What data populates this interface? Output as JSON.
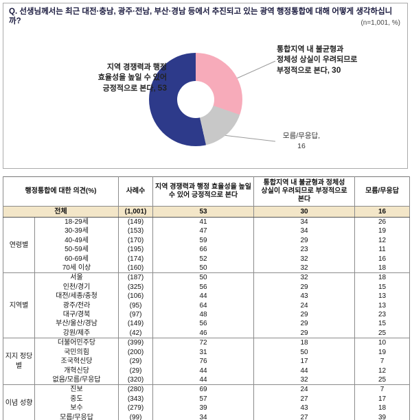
{
  "header": {
    "question": "Q. 선생님께서는 최근 대전·충남, 광주·전남, 부산·경남 등에서 추진되고 있는 광역 행정통합에 대해 어떻게 생각하십니까?",
    "sample_note": "(n=1,001, %)"
  },
  "chart_data": {
    "type": "pie",
    "donut": true,
    "labels": [
      "지역 경쟁력과 행정 효율성을 높일 수 있어 긍정적으로 본다",
      "통합지역 내 불균형과 정체성 상실이 우려되므로 부정적으로 본다",
      "모름/무응답"
    ],
    "values": [
      53,
      30,
      16
    ],
    "colors": [
      "#2d3a8a",
      "#f7abba",
      "#c8c8c8"
    ],
    "annotations": {
      "positive": {
        "lines": [
          "지역 경쟁력과 행정",
          "효율성을 높일 수 있어",
          "긍정적으로 본다,"
        ],
        "value": "53"
      },
      "negative": {
        "lines": [
          "통합지역 내 불균형과",
          "정체성 상실이 우려되므로",
          "부정적으로 본다,"
        ],
        "value": "30"
      },
      "dk": {
        "lines": [
          "모름/무응답,"
        ],
        "value": "16"
      }
    }
  },
  "table": {
    "col_headers": [
      "행정통합에 대한 의견(%)",
      "사례수",
      "지역 경쟁력과 행정 효율성을 높일 수 있어 긍정적으로 본다",
      "통합지역 내 불균형과 정체성 상실이 우려되므로 부정적으로 본다",
      "모름/무응답"
    ],
    "total_row": {
      "label": "전체",
      "n": "(1,001)",
      "values": [
        53,
        30,
        16
      ]
    },
    "groups": [
      {
        "group": "연령별",
        "rows": [
          {
            "label": "18-29세",
            "n": "(149)",
            "values": [
              41,
              34,
              26
            ]
          },
          {
            "label": "30-39세",
            "n": "(153)",
            "values": [
              47,
              34,
              19
            ]
          },
          {
            "label": "40-49세",
            "n": "(170)",
            "values": [
              59,
              29,
              12
            ]
          },
          {
            "label": "50-59세",
            "n": "(195)",
            "values": [
              66,
              23,
              11
            ]
          },
          {
            "label": "60-69세",
            "n": "(174)",
            "values": [
              52,
              32,
              16
            ]
          },
          {
            "label": "70세 이상",
            "n": "(160)",
            "values": [
              50,
              32,
              18
            ]
          }
        ]
      },
      {
        "group": "지역별",
        "rows": [
          {
            "label": "서울",
            "n": "(187)",
            "values": [
              50,
              32,
              18
            ]
          },
          {
            "label": "인천/경기",
            "n": "(325)",
            "values": [
              56,
              29,
              15
            ]
          },
          {
            "label": "대전/세종/충청",
            "n": "(106)",
            "values": [
              44,
              43,
              13
            ]
          },
          {
            "label": "광주/전라",
            "n": "(95)",
            "values": [
              64,
              24,
              13
            ]
          },
          {
            "label": "대구/경북",
            "n": "(97)",
            "values": [
              48,
              29,
              23
            ]
          },
          {
            "label": "부산/울산/경남",
            "n": "(149)",
            "values": [
              56,
              29,
              15
            ]
          },
          {
            "label": "강원/제주",
            "n": "(42)",
            "values": [
              46,
              29,
              25
            ]
          }
        ]
      },
      {
        "group": "지지 정당별",
        "rows": [
          {
            "label": "더불어민주당",
            "n": "(399)",
            "values": [
              72,
              18,
              10
            ]
          },
          {
            "label": "국민의힘",
            "n": "(200)",
            "values": [
              31,
              50,
              19
            ]
          },
          {
            "label": "조국혁신당",
            "n": "(29)",
            "values": [
              76,
              17,
              7
            ]
          },
          {
            "label": "개혁신당",
            "n": "(29)",
            "values": [
              44,
              44,
              12
            ]
          },
          {
            "label": "없음/모름/무응답",
            "n": "(320)",
            "values": [
              44,
              32,
              25
            ]
          }
        ]
      },
      {
        "group": "이념 성향",
        "rows": [
          {
            "label": "진보",
            "n": "(280)",
            "values": [
              69,
              24,
              7
            ]
          },
          {
            "label": "중도",
            "n": "(343)",
            "values": [
              57,
              27,
              17
            ]
          },
          {
            "label": "보수",
            "n": "(279)",
            "values": [
              39,
              43,
              18
            ]
          },
          {
            "label": "모름/무응답",
            "n": "(99)",
            "values": [
              34,
              27,
              39
            ]
          }
        ]
      }
    ]
  }
}
